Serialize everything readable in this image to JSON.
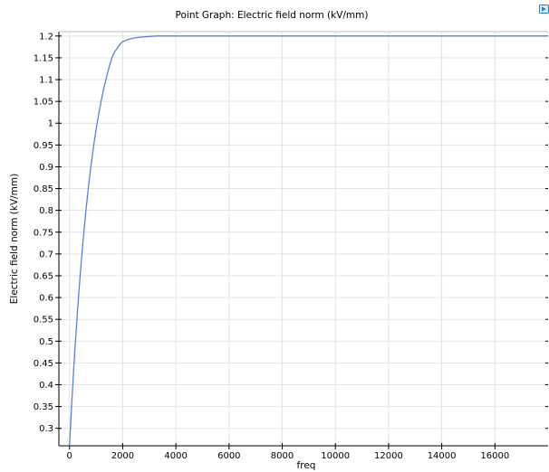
{
  "chart_data": {
    "type": "line",
    "title": "Point Graph: Electric field norm (kV/mm)",
    "xlabel": "freq",
    "ylabel": "Electric field norm (kV/mm)",
    "xlim": [
      -400,
      18000
    ],
    "ylim": [
      0.26,
      1.21
    ],
    "grid": true,
    "x_ticks": [
      0,
      2000,
      4000,
      6000,
      8000,
      10000,
      12000,
      14000,
      16000
    ],
    "x_tick_labels": [
      "0",
      "2000",
      "4000",
      "6000",
      "8000",
      "10000",
      "12000",
      "14000",
      "16000"
    ],
    "y_ticks": [
      0.3,
      0.35,
      0.4,
      0.45,
      0.5,
      0.55,
      0.6,
      0.65,
      0.7,
      0.75,
      0.8,
      0.85,
      0.9,
      0.95,
      1,
      1.05,
      1.1,
      1.15,
      1.2
    ],
    "y_tick_labels": [
      "0.3",
      "0.35",
      "0.4",
      "0.45",
      "0.5",
      "0.55",
      "0.6",
      "0.65",
      "0.7",
      "0.75",
      "0.8",
      "0.85",
      "0.9",
      "0.95",
      "1",
      "1.05",
      "1.1",
      "1.15",
      "1.2"
    ],
    "series": [
      {
        "color": "#5b7fe0",
        "x": [
          0,
          50,
          100,
          150,
          200,
          300,
          400,
          500,
          600,
          700,
          800,
          900,
          1000,
          1100,
          1200,
          1300,
          1400,
          1500,
          1600,
          1700,
          1800,
          1900,
          2000,
          2200,
          2400,
          2600,
          2800,
          3000,
          3250,
          3500,
          3750,
          4000,
          4500,
          5000,
          5500,
          6000,
          7000,
          8000,
          9000,
          10000,
          12000,
          14000,
          16000,
          18000
        ],
        "y": [
          0.26,
          0.319,
          0.375,
          0.428,
          0.478,
          0.569,
          0.651,
          0.724,
          0.789,
          0.847,
          0.899,
          0.945,
          0.986,
          1.022,
          1.054,
          1.083,
          1.108,
          1.131,
          1.151,
          1.164,
          1.173,
          1.181,
          1.187,
          1.192,
          1.195,
          1.197,
          1.198,
          1.199,
          1.2,
          1.2,
          1.2,
          1.2,
          1.2,
          1.2,
          1.2,
          1.2,
          1.2,
          1.2,
          1.2,
          1.2,
          1.2,
          1.2,
          1.2,
          1.2
        ]
      }
    ]
  },
  "colors": {
    "line": "#5b7fe0",
    "grid": "#e3e3e3",
    "axis": "#000000",
    "background": "#ffffff",
    "plot_icon": "#1f7fd1"
  },
  "toolbar": {
    "plot_icon": "plot-window-icon"
  }
}
